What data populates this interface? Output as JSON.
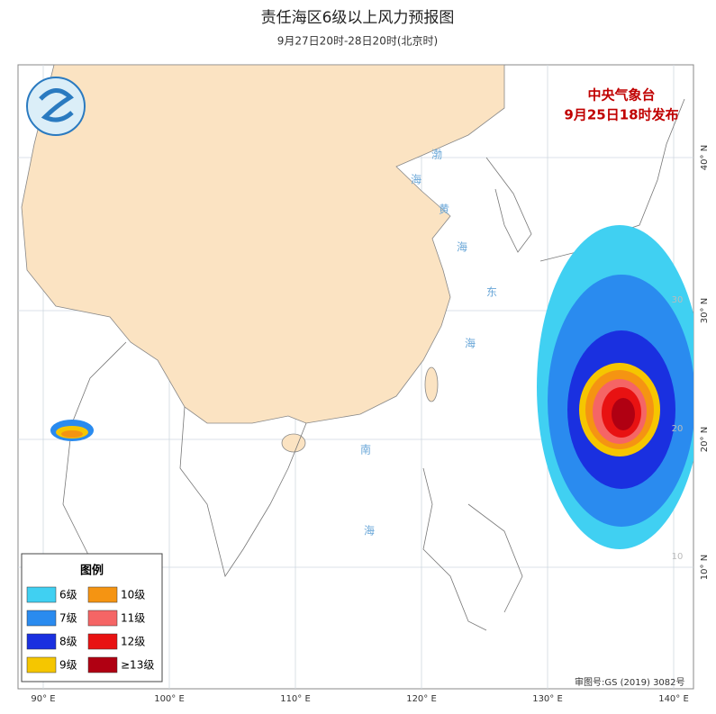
{
  "header": {
    "title": "责任海区6级以上风力预报图",
    "subtitle": "9月27日20时-28日20时(北京时)"
  },
  "issuer": {
    "agency": "中央气象台",
    "issued": "9月25日18时发布"
  },
  "legend": {
    "title": "图例",
    "items": [
      {
        "label": "6级",
        "color": "#40d0f2"
      },
      {
        "label": "7级",
        "color": "#2a8bef"
      },
      {
        "label": "8级",
        "color": "#1a30e0"
      },
      {
        "label": "9级",
        "color": "#f5c600"
      },
      {
        "label": "10级",
        "color": "#f59412"
      },
      {
        "label": "11级",
        "color": "#f56565"
      },
      {
        "label": "12级",
        "color": "#e81212"
      },
      {
        "label": "≥13级",
        "color": "#b00012"
      }
    ]
  },
  "axes": {
    "longitude_labels": [
      "90° E",
      "100° E",
      "110° E",
      "120° E",
      "130° E",
      "140° E"
    ],
    "latitude_labels": [
      "40° N",
      "30° N",
      "20° N",
      "10° N"
    ],
    "inner_latitude_labels": [
      "30",
      "20",
      "10"
    ]
  },
  "sea_labels": [
    [
      "渤",
      "海"
    ],
    [
      "黄",
      "海"
    ],
    [
      "东",
      "海"
    ],
    [
      "南",
      "海"
    ]
  ],
  "footer": {
    "approval": "审图号:GS (2019) 3082号"
  }
}
